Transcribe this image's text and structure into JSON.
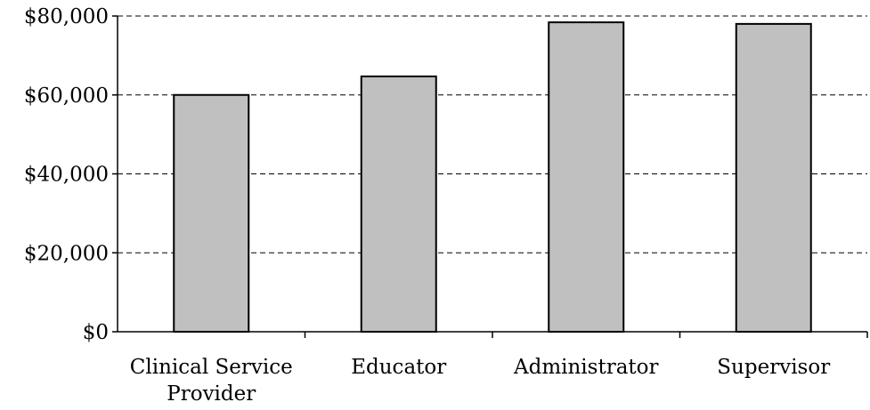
{
  "chart_data": {
    "type": "bar",
    "categories": [
      [
        "Clinical Service",
        "Provider"
      ],
      [
        "Educator"
      ],
      [
        "Administrator"
      ],
      [
        "Supervisor"
      ]
    ],
    "values": [
      60000,
      64700,
      78400,
      78000
    ],
    "y_ticks": [
      0,
      20000,
      40000,
      60000,
      80000
    ],
    "y_tick_labels": [
      "$0",
      "$20,000",
      "$40,000",
      "$60,000",
      "$80,000"
    ],
    "ylim": [
      0,
      80000
    ],
    "grid": "horizontal-dashed",
    "legend": "none",
    "title": "",
    "xlabel": "",
    "ylabel": "",
    "colors": {
      "bar_fill": "#c0c0c0",
      "bar_stroke": "#000000",
      "grid": "#000000",
      "axis": "#000000"
    }
  }
}
